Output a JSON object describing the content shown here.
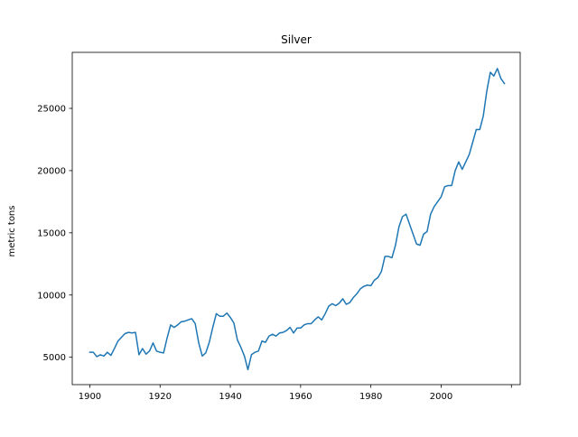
{
  "chart_data": {
    "type": "line",
    "title": "Silver",
    "xlabel": "",
    "ylabel": "metric tons",
    "xlim": [
      1895,
      2022.5
    ],
    "ylim": [
      2800,
      29500
    ],
    "x_ticks": [
      1900,
      1920,
      1940,
      1960,
      1980,
      2000,
      2020
    ],
    "x_tick_labels": [
      "1900",
      "1920",
      "1940",
      "1960",
      "1980",
      "2000",
      ""
    ],
    "y_ticks": [
      5000,
      10000,
      15000,
      20000,
      25000
    ],
    "y_tick_labels": [
      "5000",
      "10000",
      "15000",
      "20000",
      "25000"
    ],
    "grid": false,
    "legend": false,
    "series": [
      {
        "color": "#1f77b4",
        "x": [
          1900,
          1901,
          1902,
          1903,
          1904,
          1905,
          1906,
          1907,
          1908,
          1909,
          1910,
          1911,
          1912,
          1913,
          1914,
          1915,
          1916,
          1917,
          1918,
          1919,
          1920,
          1921,
          1922,
          1923,
          1924,
          1925,
          1926,
          1927,
          1928,
          1929,
          1930,
          1931,
          1932,
          1933,
          1934,
          1935,
          1936,
          1937,
          1938,
          1939,
          1940,
          1941,
          1942,
          1943,
          1944,
          1945,
          1946,
          1947,
          1948,
          1949,
          1950,
          1951,
          1952,
          1953,
          1954,
          1955,
          1956,
          1957,
          1958,
          1959,
          1960,
          1961,
          1962,
          1963,
          1964,
          1965,
          1966,
          1967,
          1968,
          1969,
          1970,
          1971,
          1972,
          1973,
          1974,
          1975,
          1976,
          1977,
          1978,
          1979,
          1980,
          1981,
          1982,
          1983,
          1984,
          1985,
          1986,
          1987,
          1988,
          1989,
          1990,
          1991,
          1992,
          1993,
          1994,
          1995,
          1996,
          1997,
          1998,
          1999,
          2000,
          2001,
          2002,
          2003,
          2004,
          2005,
          2006,
          2007,
          2008,
          2009,
          2010,
          2011,
          2012,
          2013,
          2014,
          2015,
          2016,
          2017,
          2018
        ],
        "y": [
          5400,
          5400,
          5050,
          5200,
          5100,
          5400,
          5150,
          5700,
          6300,
          6600,
          6900,
          7000,
          6950,
          7000,
          5200,
          5700,
          5250,
          5500,
          6150,
          5500,
          5400,
          5350,
          6550,
          7600,
          7400,
          7600,
          7850,
          7900,
          8000,
          8100,
          7700,
          6150,
          5100,
          5350,
          6200,
          7400,
          8500,
          8300,
          8300,
          8550,
          8200,
          7750,
          6400,
          5800,
          5100,
          4000,
          5200,
          5400,
          5500,
          6300,
          6200,
          6700,
          6850,
          6700,
          6950,
          7000,
          7150,
          7400,
          6950,
          7350,
          7350,
          7600,
          7700,
          7700,
          8000,
          8250,
          8000,
          8500,
          9100,
          9300,
          9150,
          9350,
          9700,
          9250,
          9400,
          9800,
          10100,
          10500,
          10700,
          10800,
          10750,
          11200,
          11400,
          11900,
          13100,
          13100,
          13000,
          14000,
          15500,
          16300,
          16500,
          15700,
          14900,
          14100,
          14000,
          14900,
          15100,
          16500,
          17100,
          17500,
          17900,
          18700,
          18800,
          18800,
          20000,
          20700,
          20100,
          20700,
          21300,
          22300,
          23300,
          23300,
          24400,
          26400,
          27900,
          27600,
          28200,
          27400,
          27000
        ]
      }
    ]
  }
}
